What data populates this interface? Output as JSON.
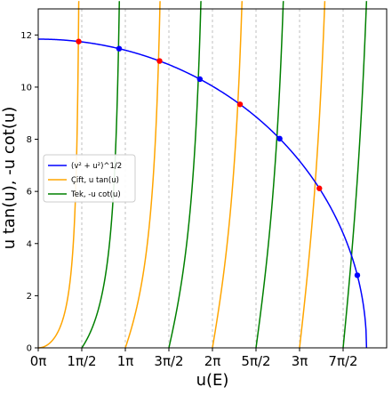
{
  "chart_data": {
    "type": "line",
    "xlabel": "u(E)",
    "ylabel": "u tan(u),  -u cot(u)",
    "x_unit": "rad",
    "xlim": [
      0,
      12.566
    ],
    "ylim": [
      0,
      13
    ],
    "grid": "vertical dashed lines at multiples of π/2",
    "legend_position": "center-left",
    "x_ticks": [
      {
        "value": 0.0,
        "label": "0π"
      },
      {
        "value": 1.5708,
        "label": "1π/2"
      },
      {
        "value": 3.1416,
        "label": "1π"
      },
      {
        "value": 4.7124,
        "label": "3π/2"
      },
      {
        "value": 6.2832,
        "label": "2π"
      },
      {
        "value": 7.854,
        "label": "5π/2"
      },
      {
        "value": 9.4248,
        "label": "3π"
      },
      {
        "value": 10.9956,
        "label": "7π/2"
      }
    ],
    "y_ticks": [
      0,
      2,
      4,
      6,
      8,
      10,
      12
    ],
    "series": [
      {
        "name": "(v² + u²)^1/2",
        "color": "#0000ff",
        "function": "sqrt(R² − u²)",
        "radius": 11.84
      },
      {
        "name": "Çift, u tan(u)",
        "color": "#ffa500",
        "function": "u*tan(u)"
      },
      {
        "name": "Tek, -u cot(u)",
        "color": "#008000",
        "function": "-u*cot(u)"
      }
    ],
    "intersections": {
      "even": {
        "color": "#ff0000",
        "x": [
          1.459,
          4.375,
          7.278,
          10.138
        ]
      },
      "odd": {
        "color": "#0000ff",
        "x": [
          2.917,
          5.829,
          8.708,
          11.508
        ]
      }
    }
  }
}
